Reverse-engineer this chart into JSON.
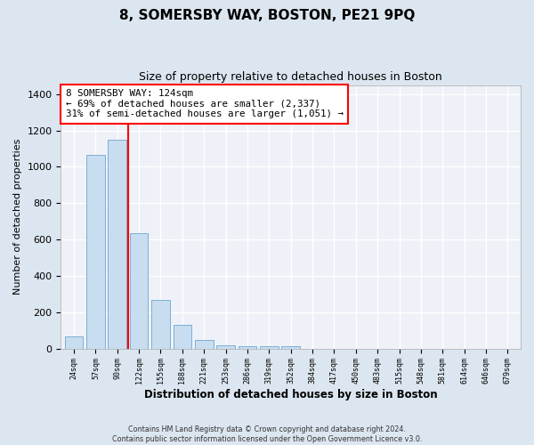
{
  "title": "8, SOMERSBY WAY, BOSTON, PE21 9PQ",
  "subtitle": "Size of property relative to detached houses in Boston",
  "xlabel": "Distribution of detached houses by size in Boston",
  "ylabel": "Number of detached properties",
  "footnote": "Contains HM Land Registry data © Crown copyright and database right 2024.\nContains public sector information licensed under the Open Government Licence v3.0.",
  "bar_labels": [
    "24sqm",
    "57sqm",
    "90sqm",
    "122sqm",
    "155sqm",
    "188sqm",
    "221sqm",
    "253sqm",
    "286sqm",
    "319sqm",
    "352sqm",
    "384sqm",
    "417sqm",
    "450sqm",
    "483sqm",
    "515sqm",
    "548sqm",
    "581sqm",
    "614sqm",
    "646sqm",
    "679sqm"
  ],
  "bar_values": [
    65,
    1065,
    1150,
    635,
    270,
    130,
    50,
    20,
    15,
    15,
    15,
    0,
    0,
    0,
    0,
    0,
    0,
    0,
    0,
    0,
    0
  ],
  "bar_color": "#c9ddf0",
  "bar_edgecolor": "#7bafd4",
  "marker_color": "red",
  "annotation_text": "8 SOMERSBY WAY: 124sqm\n← 69% of detached houses are smaller (2,337)\n31% of semi-detached houses are larger (1,051) →",
  "annotation_box_color": "white",
  "annotation_box_edgecolor": "red",
  "ylim": [
    0,
    1450
  ],
  "yticks": [
    0,
    200,
    400,
    600,
    800,
    1000,
    1200,
    1400
  ],
  "bg_color": "#dce6f0",
  "plot_bg_color": "#eef2f8",
  "title_fontsize": 11,
  "subtitle_fontsize": 9,
  "xlabel_fontsize": 8.5,
  "ylabel_fontsize": 8
}
